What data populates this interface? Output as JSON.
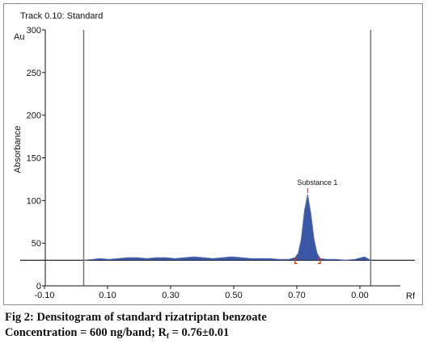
{
  "chart_data": {
    "type": "area",
    "title": "Track 0.10: Standard",
    "ylabel": "Absorbance",
    "yunit": "Au",
    "xunit": "Rf",
    "ylim": [
      0,
      300
    ],
    "yticks": [
      "0",
      "50",
      "100",
      "150",
      "200",
      "250",
      "300"
    ],
    "xticks": [
      "-0.10",
      "0.10",
      "0.30",
      "0.50",
      "0.70",
      "0.00"
    ],
    "grid": false,
    "baseline_value": 30,
    "integration_start_rf": 0.05,
    "integration_end_rf": 0.96,
    "peak": {
      "label": "Substance 1",
      "rf": 0.76,
      "height": 107,
      "start_rf": 0.72,
      "end_rf": 0.8
    },
    "series": [
      {
        "fill_color": "#23459a",
        "line_color": "#5a6fb0",
        "points": [
          [
            0.05,
            30
          ],
          [
            0.08,
            31
          ],
          [
            0.1,
            32
          ],
          [
            0.13,
            31
          ],
          [
            0.16,
            32
          ],
          [
            0.19,
            33
          ],
          [
            0.22,
            33
          ],
          [
            0.25,
            32
          ],
          [
            0.28,
            33
          ],
          [
            0.31,
            33
          ],
          [
            0.34,
            32
          ],
          [
            0.37,
            33
          ],
          [
            0.4,
            34
          ],
          [
            0.43,
            33
          ],
          [
            0.46,
            32
          ],
          [
            0.49,
            33
          ],
          [
            0.52,
            34
          ],
          [
            0.55,
            33
          ],
          [
            0.58,
            32
          ],
          [
            0.61,
            32
          ],
          [
            0.64,
            32
          ],
          [
            0.67,
            31
          ],
          [
            0.7,
            31
          ],
          [
            0.72,
            33
          ],
          [
            0.73,
            38
          ],
          [
            0.74,
            55
          ],
          [
            0.75,
            88
          ],
          [
            0.76,
            107
          ],
          [
            0.77,
            85
          ],
          [
            0.78,
            55
          ],
          [
            0.79,
            38
          ],
          [
            0.8,
            32
          ],
          [
            0.82,
            31
          ],
          [
            0.85,
            31
          ],
          [
            0.88,
            30
          ],
          [
            0.91,
            31
          ],
          [
            0.94,
            34
          ],
          [
            0.96,
            30
          ]
        ]
      }
    ]
  },
  "caption": {
    "line1": "Fig 2: Densitogram of standard rizatriptan benzoate",
    "line2_prefix": "Concentration = 600 ng/band; R",
    "line2_sub": "f",
    "line2_suffix": " = 0.76±0.01"
  }
}
